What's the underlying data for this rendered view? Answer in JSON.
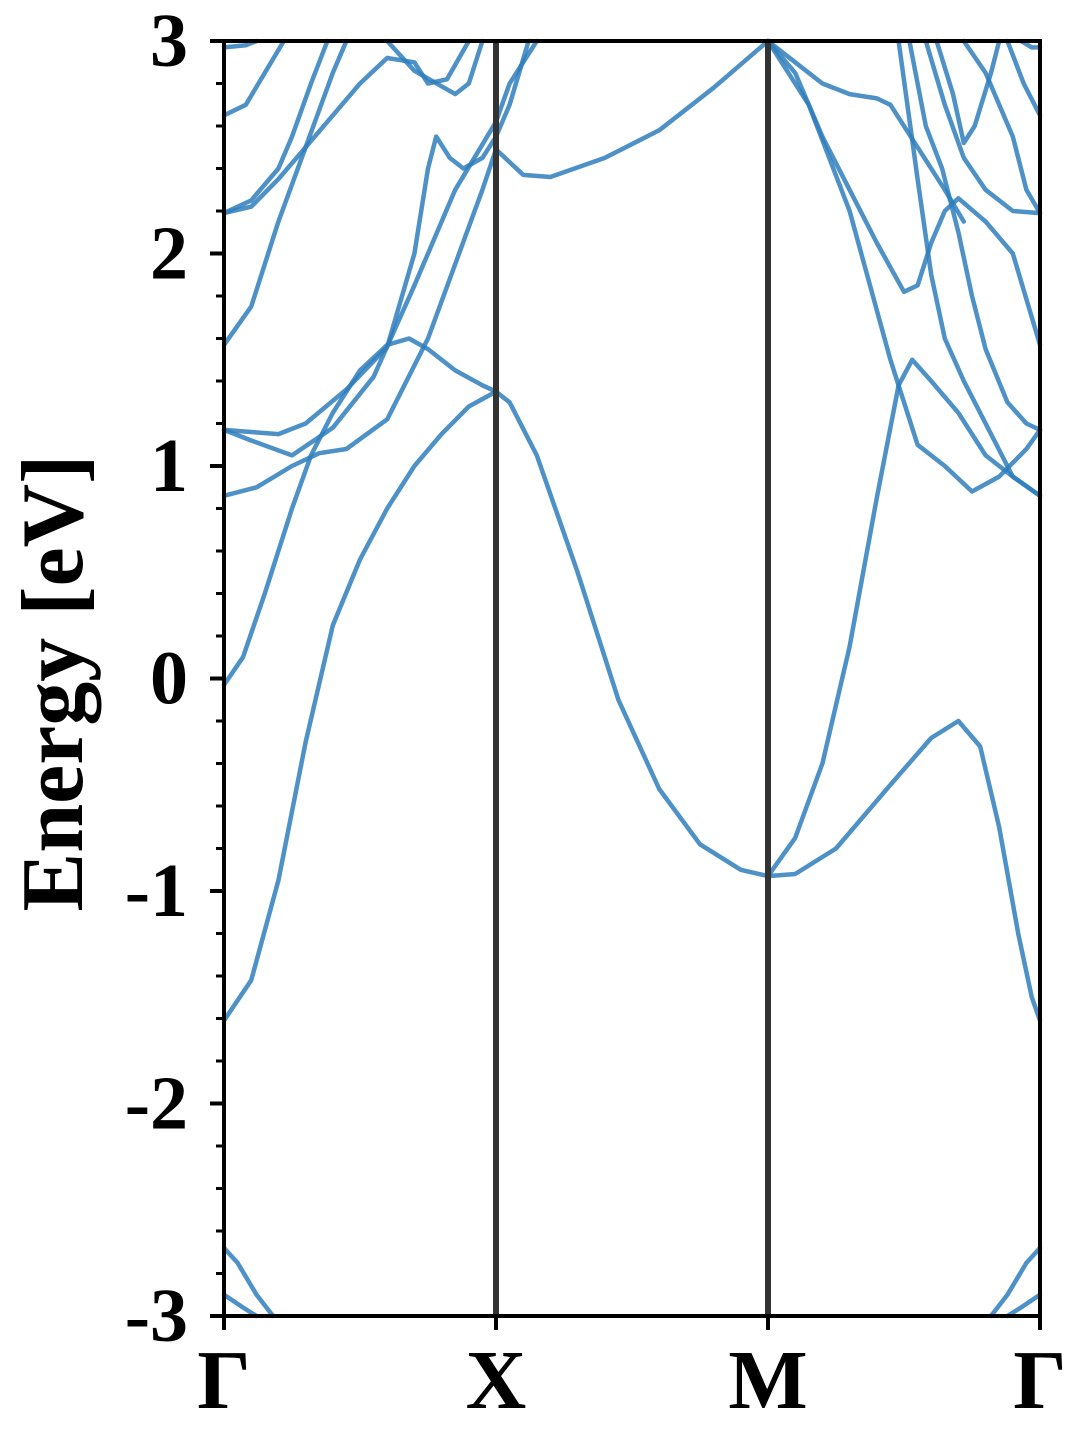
{
  "chart_data": {
    "type": "line",
    "title": "",
    "xlabel": "",
    "ylabel": "Energy [eV]",
    "ylim": [
      -3,
      3
    ],
    "xlim": [
      0,
      3
    ],
    "grid": false,
    "legend": "none",
    "yticks": [
      {
        "value": 3,
        "label": "3"
      },
      {
        "value": 2,
        "label": "2"
      },
      {
        "value": 1,
        "label": "1"
      },
      {
        "value": 0,
        "label": "0"
      },
      {
        "value": -1,
        "label": "-1"
      },
      {
        "value": -2,
        "label": "-2"
      },
      {
        "value": -3,
        "label": "-3"
      }
    ],
    "minor_ytick_step": 0.2,
    "kpoints": [
      {
        "x": 0,
        "label": "Γ"
      },
      {
        "x": 1,
        "label": "X"
      },
      {
        "x": 2,
        "label": "M"
      },
      {
        "x": 3,
        "label": "Γ"
      }
    ],
    "colors": {
      "band": "#2e7ebc",
      "divider": "#333333",
      "frame": "#000000"
    },
    "series": [
      {
        "points": [
          [
            0,
            -1.61
          ],
          [
            0.1,
            -1.42
          ],
          [
            0.2,
            -0.95
          ],
          [
            0.3,
            -0.3
          ],
          [
            0.4,
            0.25
          ],
          [
            0.5,
            0.56
          ],
          [
            0.6,
            0.8
          ],
          [
            0.7,
            1.0
          ],
          [
            0.8,
            1.15
          ],
          [
            0.9,
            1.28
          ],
          [
            1.0,
            1.35
          ]
        ]
      },
      {
        "points": [
          [
            1.0,
            1.35
          ],
          [
            1.05,
            1.3
          ],
          [
            1.15,
            1.05
          ],
          [
            1.3,
            0.5
          ],
          [
            1.45,
            -0.1
          ],
          [
            1.6,
            -0.52
          ],
          [
            1.75,
            -0.78
          ],
          [
            1.9,
            -0.9
          ],
          [
            2.0,
            -0.93
          ]
        ]
      },
      {
        "points": [
          [
            2.0,
            -0.93
          ],
          [
            2.1,
            -0.92
          ],
          [
            2.25,
            -0.8
          ],
          [
            2.45,
            -0.5
          ],
          [
            2.6,
            -0.28
          ],
          [
            2.7,
            -0.2
          ],
          [
            2.78,
            -0.32
          ],
          [
            2.85,
            -0.7
          ],
          [
            2.92,
            -1.2
          ],
          [
            2.97,
            -1.5
          ],
          [
            3.0,
            -1.61
          ]
        ]
      },
      {
        "points": [
          [
            2.0,
            -0.93
          ],
          [
            2.1,
            -0.75
          ],
          [
            2.2,
            -0.4
          ],
          [
            2.3,
            0.15
          ],
          [
            2.4,
            0.85
          ],
          [
            2.48,
            1.38
          ],
          [
            2.53,
            1.5
          ],
          [
            2.6,
            1.4
          ],
          [
            2.7,
            1.25
          ],
          [
            2.8,
            1.05
          ],
          [
            2.9,
            0.95
          ],
          [
            3.0,
            0.86
          ]
        ]
      },
      {
        "points": [
          [
            0,
            -0.03
          ],
          [
            0.07,
            0.1
          ],
          [
            0.15,
            0.4
          ],
          [
            0.25,
            0.8
          ],
          [
            0.32,
            1.05
          ],
          [
            0.4,
            1.25
          ],
          [
            0.5,
            1.45
          ],
          [
            0.6,
            1.57
          ],
          [
            0.68,
            1.6
          ],
          [
            0.75,
            1.55
          ],
          [
            0.85,
            1.45
          ],
          [
            0.95,
            1.38
          ],
          [
            1.0,
            1.35
          ]
        ]
      },
      {
        "points": [
          [
            0,
            0.86
          ],
          [
            0.12,
            0.9
          ],
          [
            0.25,
            1.0
          ],
          [
            0.35,
            1.06
          ],
          [
            0.45,
            1.08
          ],
          [
            0.6,
            1.22
          ],
          [
            0.75,
            1.6
          ],
          [
            0.85,
            1.95
          ],
          [
            0.95,
            2.3
          ],
          [
            1.0,
            2.49
          ],
          [
            1.05,
            2.43
          ],
          [
            1.1,
            2.37
          ],
          [
            1.2,
            2.36
          ],
          [
            1.4,
            2.45
          ],
          [
            1.6,
            2.58
          ],
          [
            1.8,
            2.78
          ],
          [
            2.0,
            3.0
          ]
        ]
      },
      {
        "points": [
          [
            0,
            1.17
          ],
          [
            0.1,
            1.16
          ],
          [
            0.2,
            1.15
          ],
          [
            0.3,
            1.2
          ],
          [
            0.45,
            1.36
          ],
          [
            0.6,
            1.56
          ],
          [
            0.7,
            2.0
          ],
          [
            0.75,
            2.4
          ],
          [
            0.78,
            2.55
          ],
          [
            0.83,
            2.45
          ],
          [
            0.88,
            2.4
          ],
          [
            0.95,
            2.45
          ],
          [
            1.0,
            2.55
          ],
          [
            1.05,
            2.7
          ],
          [
            1.12,
            3.0
          ]
        ]
      },
      {
        "points": [
          [
            0,
            1.17
          ],
          [
            0.1,
            1.12
          ],
          [
            0.25,
            1.05
          ],
          [
            0.4,
            1.18
          ],
          [
            0.55,
            1.42
          ],
          [
            0.7,
            1.85
          ],
          [
            0.85,
            2.3
          ],
          [
            1.0,
            2.62
          ],
          [
            1.05,
            2.8
          ],
          [
            1.15,
            3.0
          ]
        ]
      },
      {
        "points": [
          [
            0,
            1.57
          ],
          [
            0.1,
            1.75
          ],
          [
            0.2,
            2.15
          ],
          [
            0.3,
            2.5
          ],
          [
            0.4,
            2.85
          ],
          [
            0.45,
            3.0
          ]
        ]
      },
      {
        "points": [
          [
            0,
            2.19
          ],
          [
            0.1,
            2.22
          ],
          [
            0.2,
            2.35
          ],
          [
            0.3,
            2.5
          ],
          [
            0.4,
            2.65
          ],
          [
            0.5,
            2.8
          ],
          [
            0.6,
            2.92
          ],
          [
            0.7,
            2.9
          ],
          [
            0.75,
            2.8
          ],
          [
            0.82,
            2.82
          ],
          [
            0.9,
            3.0
          ]
        ]
      },
      {
        "points": [
          [
            0,
            2.19
          ],
          [
            0.1,
            2.25
          ],
          [
            0.2,
            2.4
          ],
          [
            0.25,
            2.55
          ],
          [
            0.32,
            2.8
          ],
          [
            0.38,
            3.0
          ]
        ]
      },
      {
        "points": [
          [
            0,
            2.65
          ],
          [
            0.08,
            2.7
          ],
          [
            0.15,
            2.85
          ],
          [
            0.22,
            3.0
          ]
        ]
      },
      {
        "points": [
          [
            0,
            2.97
          ],
          [
            0.08,
            2.98
          ],
          [
            0.12,
            3.0
          ]
        ]
      },
      {
        "points": [
          [
            0.6,
            3.0
          ],
          [
            0.7,
            2.86
          ],
          [
            0.85,
            2.75
          ],
          [
            0.9,
            2.8
          ],
          [
            0.95,
            3.0
          ]
        ]
      },
      {
        "points": [
          [
            2.0,
            3.0
          ],
          [
            2.1,
            2.9
          ],
          [
            2.2,
            2.8
          ],
          [
            2.3,
            2.75
          ],
          [
            2.4,
            2.73
          ],
          [
            2.45,
            2.7
          ],
          [
            2.55,
            2.5
          ],
          [
            2.65,
            2.3
          ],
          [
            2.72,
            2.15
          ]
        ]
      },
      {
        "points": [
          [
            2.0,
            3.0
          ],
          [
            2.1,
            2.85
          ],
          [
            2.2,
            2.55
          ],
          [
            2.3,
            2.3
          ],
          [
            2.4,
            2.05
          ],
          [
            2.5,
            1.82
          ],
          [
            2.55,
            1.85
          ],
          [
            2.6,
            2.05
          ],
          [
            2.65,
            2.2
          ],
          [
            2.7,
            2.26
          ],
          [
            2.8,
            2.15
          ],
          [
            2.9,
            2.0
          ],
          [
            3.0,
            1.57
          ]
        ]
      },
      {
        "points": [
          [
            2.0,
            3.0
          ],
          [
            2.15,
            2.7
          ],
          [
            2.3,
            2.2
          ],
          [
            2.45,
            1.5
          ],
          [
            2.55,
            1.1
          ],
          [
            2.65,
            1.0
          ],
          [
            2.75,
            0.88
          ],
          [
            2.85,
            0.95
          ],
          [
            2.95,
            1.08
          ],
          [
            3.0,
            1.17
          ]
        ]
      },
      {
        "points": [
          [
            2.52,
            3.0
          ],
          [
            2.58,
            2.6
          ],
          [
            2.64,
            2.4
          ],
          [
            2.7,
            2.1
          ],
          [
            2.75,
            1.8
          ],
          [
            2.8,
            1.55
          ],
          [
            2.88,
            1.3
          ],
          [
            2.95,
            1.2
          ],
          [
            3.0,
            1.17
          ]
        ]
      },
      {
        "points": [
          [
            2.48,
            3.0
          ],
          [
            2.55,
            2.35
          ],
          [
            2.6,
            1.9
          ],
          [
            2.65,
            1.6
          ],
          [
            2.72,
            1.4
          ],
          [
            2.8,
            1.2
          ],
          [
            2.9,
            0.95
          ],
          [
            3.0,
            0.86
          ]
        ]
      },
      {
        "points": [
          [
            2.58,
            3.0
          ],
          [
            2.65,
            2.7
          ],
          [
            2.72,
            2.45
          ],
          [
            2.8,
            2.3
          ],
          [
            2.9,
            2.2
          ],
          [
            3.0,
            2.19
          ]
        ]
      },
      {
        "points": [
          [
            2.72,
            3.0
          ],
          [
            2.8,
            2.85
          ],
          [
            2.9,
            2.55
          ],
          [
            2.95,
            2.3
          ],
          [
            3.0,
            2.19
          ]
        ]
      },
      {
        "points": [
          [
            2.62,
            3.0
          ],
          [
            2.68,
            2.75
          ],
          [
            2.72,
            2.52
          ],
          [
            2.76,
            2.6
          ],
          [
            2.82,
            2.85
          ],
          [
            2.85,
            3.0
          ]
        ]
      },
      {
        "points": [
          [
            2.88,
            3.0
          ],
          [
            2.94,
            2.8
          ],
          [
            3.0,
            2.65
          ]
        ]
      },
      {
        "points": [
          [
            2.93,
            3.0
          ],
          [
            2.97,
            2.97
          ],
          [
            3.0,
            2.97
          ]
        ]
      },
      {
        "points": [
          [
            0,
            -2.68
          ],
          [
            0.05,
            -2.75
          ],
          [
            0.12,
            -2.9
          ],
          [
            0.18,
            -3.0
          ]
        ]
      },
      {
        "points": [
          [
            0,
            -2.9
          ],
          [
            0.07,
            -2.96
          ],
          [
            0.12,
            -3.0
          ]
        ]
      },
      {
        "points": [
          [
            3.0,
            -2.68
          ],
          [
            2.95,
            -2.75
          ],
          [
            2.88,
            -2.9
          ],
          [
            2.82,
            -3.0
          ]
        ]
      },
      {
        "points": [
          [
            3.0,
            -2.9
          ],
          [
            2.93,
            -2.96
          ],
          [
            2.88,
            -3.0
          ]
        ]
      }
    ]
  }
}
